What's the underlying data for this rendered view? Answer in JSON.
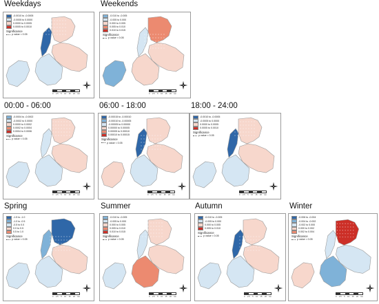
{
  "significance_label": "Significance",
  "pvalue_label": "p value < 0.05",
  "scale_labels": [
    "0",
    "2.5",
    "5",
    "10",
    "15",
    "20",
    "km"
  ],
  "colors": {
    "strong_blue": "#2f67a8",
    "mid_blue": "#7fb2d8",
    "light_blue": "#d5e6f3",
    "light_red": "#f7d7cc",
    "mid_red": "#ec8a70",
    "strong_red": "#cc2f27"
  },
  "panels": [
    {
      "id": "weekdays",
      "title": "Weekdays",
      "legend": [
        "-0.0010 to -0.0005",
        "-0.0005 to 0.0000",
        "0.0000 to 0.0005",
        "0.0005 to 0.0010"
      ],
      "swatches": [
        "strong_blue",
        "light_blue",
        "light_red",
        "strong_red"
      ]
    },
    {
      "id": "weekends",
      "title": "Weekends",
      "legend": [
        "-0.010 to -0.005",
        "-0.005 to 0.000",
        "0.000 to 0.005",
        "0.005 to 0.010",
        "0.010 to 0.015"
      ],
      "swatches": [
        "mid_blue",
        "light_blue",
        "light_red",
        "mid_red",
        "strong_red"
      ]
    },
    {
      "id": "night",
      "title": "00:00 - 06:00",
      "legend": [
        "-0.0004 to -0.0002",
        "-0.0002 to 0.0000",
        "0.0000 to 0.0002",
        "0.0002 to 0.0004",
        "0.0004 to 0.0006"
      ],
      "swatches": [
        "mid_blue",
        "light_blue",
        "light_red",
        "mid_red",
        "strong_red"
      ]
    },
    {
      "id": "day",
      "title": "06:00 - 18:00",
      "legend": [
        "-0.00015 to -0.00010",
        "-0.00010 to -0.00005",
        "-0.00005 to 0.00000",
        "0.00000 to 0.00005",
        "0.00005 to 0.00010",
        "0.00010 to 0.00015"
      ],
      "swatches": [
        "strong_blue",
        "mid_blue",
        "light_blue",
        "light_red",
        "mid_red",
        "strong_red"
      ]
    },
    {
      "id": "evening",
      "title": "18:00 - 24:00",
      "legend": [
        "-0.0010 to -0.0005",
        "-0.0005 to 0.0000",
        "0.0000 to 0.0005",
        "0.0005 to 0.0010"
      ],
      "swatches": [
        "strong_blue",
        "light_blue",
        "light_red",
        "strong_red"
      ]
    },
    {
      "id": "spring",
      "title": "Spring",
      "legend": [
        "-1.5 to -1.0",
        "-1.0 to -0.5",
        "-0.5 to 0.0",
        "0.0 to 0.5",
        "0.5 to 1.0"
      ],
      "swatches": [
        "strong_blue",
        "mid_blue",
        "light_blue",
        "light_red",
        "mid_red"
      ]
    },
    {
      "id": "summer",
      "title": "Summer",
      "legend": [
        "-0.010 to -0.005",
        "-0.005 to 0.000",
        "0.000 to 0.005",
        "0.005 to 0.010",
        "0.010 to 0.015"
      ],
      "swatches": [
        "mid_blue",
        "light_blue",
        "light_red",
        "mid_red",
        "strong_red"
      ]
    },
    {
      "id": "autumn",
      "title": "Autumn",
      "legend": [
        "-0.010 to -0.005",
        "-0.005 to 0.000",
        "0.000 to 0.005",
        "0.005 to 0.010"
      ],
      "swatches": [
        "strong_blue",
        "light_blue",
        "light_red",
        "strong_red"
      ]
    },
    {
      "id": "winter",
      "title": "Winter",
      "legend": [
        "-0.006 to -0.004",
        "-0.004 to -0.002",
        "-0.002 to 0.000",
        "0.000 to 0.002",
        "0.002 to 0.004"
      ],
      "swatches": [
        "strong_blue",
        "mid_blue",
        "light_blue",
        "light_red",
        "mid_red"
      ]
    }
  ]
}
